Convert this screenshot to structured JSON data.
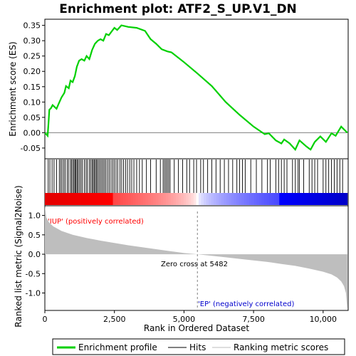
{
  "chart_data": {
    "type": "line",
    "title": "Enrichment plot: ATF2_S_UP.V1_DN",
    "xlabel": "Rank in Ordered Dataset",
    "ylabel_top": "Enrichment score (ES)",
    "ylabel_bottom": "Ranked list metric (Signal2Noise)",
    "x_ticks": [
      "0",
      "2,500",
      "5,000",
      "7,500",
      "10,000"
    ],
    "x_tick_values": [
      0,
      2500,
      5000,
      7500,
      10000
    ],
    "es_y_ticks": [
      "-0.05",
      "0.00",
      "0.05",
      "0.10",
      "0.15",
      "0.20",
      "0.25",
      "0.30",
      "0.35"
    ],
    "es_y_tick_values": [
      -0.05,
      0.0,
      0.05,
      0.1,
      0.15,
      0.2,
      0.25,
      0.3,
      0.35
    ],
    "es_ylim": [
      -0.085,
      0.37
    ],
    "metric_y_ticks": [
      "1.0",
      "0.5",
      "0.0",
      "-0.5",
      "-1.0"
    ],
    "metric_y_tick_values": [
      1.0,
      0.5,
      0.0,
      -0.5,
      -1.0
    ],
    "metric_ylim": [
      -1.45,
      1.25
    ],
    "xlim": [
      0,
      10900
    ],
    "n_genes": 10870,
    "zero_cross_label": "Zero cross at 5482",
    "zero_cross": 5482,
    "pos_label": "'IUP' (positively correlated)",
    "neg_label": "'EP' (negatively correlated)",
    "grid": false,
    "legend": [
      "Enrichment profile",
      "Hits",
      "Ranking metric scores"
    ],
    "legend_position": "bottom",
    "colors": {
      "profile": "#00d000",
      "hits": "#000000",
      "metric": "#bebebe",
      "pos_label": "#ff0000",
      "neg_label": "#0000cc",
      "zero_line": "#808080"
    },
    "es_profile": [
      [
        0,
        0.0
      ],
      [
        100,
        -0.01
      ],
      [
        130,
        0.03
      ],
      [
        160,
        0.075
      ],
      [
        220,
        0.08
      ],
      [
        280,
        0.09
      ],
      [
        420,
        0.078
      ],
      [
        500,
        0.095
      ],
      [
        600,
        0.115
      ],
      [
        700,
        0.13
      ],
      [
        760,
        0.152
      ],
      [
        860,
        0.145
      ],
      [
        920,
        0.17
      ],
      [
        1000,
        0.165
      ],
      [
        1080,
        0.185
      ],
      [
        1150,
        0.215
      ],
      [
        1230,
        0.235
      ],
      [
        1320,
        0.24
      ],
      [
        1420,
        0.235
      ],
      [
        1500,
        0.25
      ],
      [
        1600,
        0.24
      ],
      [
        1700,
        0.27
      ],
      [
        1800,
        0.29
      ],
      [
        1900,
        0.3
      ],
      [
        2000,
        0.305
      ],
      [
        2100,
        0.3
      ],
      [
        2200,
        0.322
      ],
      [
        2300,
        0.318
      ],
      [
        2400,
        0.33
      ],
      [
        2500,
        0.342
      ],
      [
        2600,
        0.335
      ],
      [
        2750,
        0.35
      ],
      [
        3000,
        0.345
      ],
      [
        3300,
        0.342
      ],
      [
        3600,
        0.332
      ],
      [
        3800,
        0.305
      ],
      [
        4000,
        0.29
      ],
      [
        4200,
        0.272
      ],
      [
        4400,
        0.265
      ],
      [
        4550,
        0.262
      ],
      [
        5000,
        0.23
      ],
      [
        5482,
        0.193
      ],
      [
        6000,
        0.152
      ],
      [
        6500,
        0.1
      ],
      [
        7000,
        0.058
      ],
      [
        7500,
        0.02
      ],
      [
        7900,
        -0.005
      ],
      [
        8050,
        -0.002
      ],
      [
        8300,
        -0.025
      ],
      [
        8500,
        -0.035
      ],
      [
        8600,
        -0.022
      ],
      [
        8800,
        -0.035
      ],
      [
        9000,
        -0.055
      ],
      [
        9150,
        -0.025
      ],
      [
        9400,
        -0.045
      ],
      [
        9550,
        -0.055
      ],
      [
        9700,
        -0.03
      ],
      [
        9900,
        -0.012
      ],
      [
        10100,
        -0.03
      ],
      [
        10300,
        -0.002
      ],
      [
        10450,
        -0.01
      ],
      [
        10650,
        0.02
      ],
      [
        10870,
        0.0
      ]
    ],
    "hits": [
      120,
      180,
      260,
      330,
      420,
      520,
      570,
      620,
      680,
      730,
      800,
      850,
      920,
      960,
      1010,
      1050,
      1090,
      1120,
      1160,
      1200,
      1250,
      1300,
      1350,
      1420,
      1480,
      1530,
      1600,
      1650,
      1700,
      1740,
      1780,
      1820,
      1860,
      1900,
      1950,
      2000,
      2050,
      2100,
      2150,
      2200,
      2260,
      2320,
      2380,
      2440,
      2500,
      2560,
      2620,
      2700,
      2760,
      2830,
      2900,
      2970,
      3050,
      3120,
      3200,
      3300,
      3400,
      3500,
      3650,
      3800,
      4000,
      4150,
      4250,
      4300,
      4350,
      4400,
      4450,
      4500,
      4650,
      4800,
      4950,
      5100,
      5200,
      5350,
      5450,
      5600,
      5700,
      5850,
      6000,
      6150,
      6300,
      6450,
      6600,
      6750,
      6900,
      7000,
      7100,
      7200,
      7400,
      7600,
      7800,
      8000,
      8100,
      8300,
      8400,
      8500,
      8600,
      8700,
      8900,
      9000,
      9100,
      9150,
      9300,
      9500,
      9600,
      9700,
      9800,
      10000,
      10100,
      10200,
      10300,
      10400,
      10500,
      10600,
      10700
    ],
    "metric_curve": [
      [
        0,
        1.25
      ],
      [
        50,
        0.95
      ],
      [
        150,
        0.82
      ],
      [
        300,
        0.72
      ],
      [
        600,
        0.6
      ],
      [
        1000,
        0.5
      ],
      [
        1500,
        0.42
      ],
      [
        2000,
        0.35
      ],
      [
        2500,
        0.29
      ],
      [
        3000,
        0.23
      ],
      [
        3500,
        0.18
      ],
      [
        4000,
        0.13
      ],
      [
        4500,
        0.08
      ],
      [
        5000,
        0.03
      ],
      [
        5482,
        0.0
      ],
      [
        6000,
        -0.04
      ],
      [
        6500,
        -0.08
      ],
      [
        7000,
        -0.12
      ],
      [
        7500,
        -0.16
      ],
      [
        8000,
        -0.2
      ],
      [
        8500,
        -0.25
      ],
      [
        9000,
        -0.3
      ],
      [
        9500,
        -0.37
      ],
      [
        10000,
        -0.45
      ],
      [
        10300,
        -0.52
      ],
      [
        10500,
        -0.6
      ],
      [
        10650,
        -0.7
      ],
      [
        10750,
        -0.82
      ],
      [
        10820,
        -1.0
      ],
      [
        10860,
        -1.35
      ],
      [
        10870,
        -1.4
      ]
    ]
  }
}
